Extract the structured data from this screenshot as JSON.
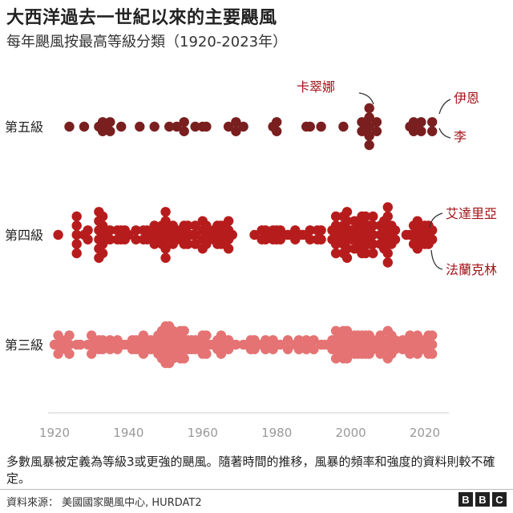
{
  "title": "大西洋過去一世紀以來的主要颶風",
  "subtitle": "每年颶風按最高等級分類（1920-2023年）",
  "footnote": "多數風暴被定義為等級3或更強的颶風。隨著時間的推移，風暴的頻率和強度的資料則較不確定。",
  "source": "資料來源：  美國國家颶風中心, HURDAT2",
  "logo": [
    "B",
    "B",
    "C"
  ],
  "colors": {
    "cat5": "#7a1f1f",
    "cat4": "#b71c1c",
    "cat3": "#e57373",
    "annotation": "#a3141a",
    "axis": "#999999"
  },
  "chart_data": {
    "type": "scatter",
    "description_style": "beeswarm",
    "x_axis": {
      "range": [
        1920,
        2023
      ],
      "ticks": [
        1920,
        1940,
        1960,
        1980,
        2000,
        2020
      ]
    },
    "rows": [
      {
        "label": "第五級",
        "key": "cat5"
      },
      {
        "label": "第四級",
        "key": "cat4"
      },
      {
        "label": "第三級",
        "key": "cat3"
      }
    ],
    "series": [
      {
        "name": "第五級",
        "key": "cat5",
        "years": [
          1924,
          1928,
          1932,
          1933,
          1933,
          1934,
          1935,
          1935,
          1938,
          1943,
          1947,
          1951,
          1953,
          1955,
          1955,
          1958,
          1960,
          1961,
          1967,
          1969,
          1969,
          1971,
          1979,
          1980,
          1980,
          1988,
          1989,
          1992,
          1998,
          2003,
          2003,
          2004,
          2004,
          2005,
          2005,
          2005,
          2005,
          2005,
          2007,
          2007,
          2016,
          2017,
          2017,
          2018,
          2019,
          2019,
          2022,
          2022
        ]
      },
      {
        "name": "第四級",
        "key": "cat4",
        "years": [
          1921,
          1926,
          1926,
          1926,
          1926,
          1926,
          1928,
          1929,
          1929,
          1932,
          1932,
          1932,
          1932,
          1932,
          1932,
          1933,
          1933,
          1933,
          1933,
          1933,
          1934,
          1934,
          1935,
          1935,
          1937,
          1937,
          1938,
          1938,
          1939,
          1939,
          1940,
          1942,
          1942,
          1944,
          1944,
          1945,
          1945,
          1946,
          1947,
          1947,
          1947,
          1948,
          1948,
          1949,
          1949,
          1949,
          1950,
          1950,
          1950,
          1950,
          1950,
          1950,
          1951,
          1951,
          1952,
          1952,
          1952,
          1953,
          1953,
          1954,
          1954,
          1955,
          1955,
          1955,
          1956,
          1956,
          1956,
          1957,
          1958,
          1958,
          1958,
          1960,
          1960,
          1960,
          1960,
          1961,
          1961,
          1961,
          1962,
          1963,
          1963,
          1964,
          1964,
          1964,
          1965,
          1965,
          1965,
          1966,
          1966,
          1966,
          1967,
          1967,
          1967,
          1967,
          1968,
          1974,
          1976,
          1976,
          1977,
          1977,
          1978,
          1979,
          1979,
          1980,
          1980,
          1981,
          1981,
          1982,
          1983,
          1984,
          1985,
          1985,
          1986,
          1987,
          1988,
          1989,
          1989,
          1991,
          1991,
          1992,
          1992,
          1995,
          1995,
          1996,
          1996,
          1996,
          1996,
          1996,
          1997,
          1997,
          1998,
          1998,
          1998,
          1998,
          1998,
          1999,
          1999,
          1999,
          1999,
          1999,
          1999,
          2000,
          2000,
          2001,
          2001,
          2001,
          2001,
          2002,
          2002,
          2002,
          2002,
          2003,
          2003,
          2003,
          2003,
          2003,
          2004,
          2004,
          2004,
          2004,
          2004,
          2005,
          2005,
          2005,
          2006,
          2006,
          2006,
          2006,
          2006,
          2008,
          2008,
          2008,
          2009,
          2009,
          2009,
          2009,
          2010,
          2010,
          2010,
          2010,
          2010,
          2010,
          2010,
          2011,
          2011,
          2011,
          2012,
          2012,
          2015,
          2016,
          2017,
          2017,
          2017,
          2018,
          2018,
          2018,
          2018,
          2019,
          2019,
          2019,
          2020,
          2020,
          2020,
          2021,
          2021,
          2021,
          2022,
          2022
        ]
      },
      {
        "name": "第三級",
        "key": "cat3",
        "years": [
          1920,
          1921,
          1921,
          1921,
          1922,
          1923,
          1923,
          1924,
          1924,
          1924,
          1926,
          1927,
          1929,
          1930,
          1930,
          1930,
          1931,
          1932,
          1932,
          1933,
          1933,
          1934,
          1935,
          1935,
          1936,
          1937,
          1937,
          1938,
          1939,
          1940,
          1941,
          1941,
          1942,
          1942,
          1943,
          1943,
          1944,
          1944,
          1944,
          1945,
          1945,
          1946,
          1946,
          1947,
          1947,
          1948,
          1948,
          1948,
          1949,
          1949,
          1949,
          1949,
          1950,
          1950,
          1950,
          1950,
          1950,
          1951,
          1951,
          1951,
          1951,
          1951,
          1952,
          1952,
          1952,
          1952,
          1953,
          1953,
          1953,
          1954,
          1954,
          1954,
          1954,
          1955,
          1955,
          1955,
          1955,
          1956,
          1956,
          1957,
          1957,
          1958,
          1958,
          1959,
          1960,
          1960,
          1960,
          1961,
          1961,
          1961,
          1962,
          1963,
          1964,
          1964,
          1965,
          1965,
          1965,
          1966,
          1966,
          1967,
          1967,
          1968,
          1969,
          1971,
          1972,
          1973,
          1973,
          1974,
          1974,
          1975,
          1976,
          1977,
          1977,
          1978,
          1979,
          1979,
          1980,
          1981,
          1983,
          1983,
          1985,
          1986,
          1986,
          1987,
          1988,
          1988,
          1989,
          1990,
          1990,
          1992,
          1993,
          1994,
          1995,
          1995,
          1996,
          1996,
          1996,
          1996,
          1997,
          1997,
          1997,
          1998,
          1998,
          1998,
          1998,
          1999,
          1999,
          1999,
          1999,
          2000,
          2000,
          2001,
          2001,
          2001,
          2002,
          2002,
          2002,
          2003,
          2003,
          2003,
          2004,
          2004,
          2004,
          2005,
          2005,
          2005,
          2006,
          2006,
          2007,
          2008,
          2008,
          2008,
          2009,
          2010,
          2010,
          2010,
          2010,
          2011,
          2011,
          2011,
          2012,
          2012,
          2013,
          2014,
          2014,
          2015,
          2015,
          2016,
          2016,
          2016,
          2017,
          2017,
          2018,
          2018,
          2018,
          2019,
          2019,
          2020,
          2020,
          2021,
          2021,
          2021,
          2022,
          2022,
          2022
        ]
      }
    ],
    "annotations": [
      {
        "text": "卡翠娜",
        "row": "cat5",
        "year": 2005
      },
      {
        "text": "伊恩",
        "row": "cat5",
        "year": 2022
      },
      {
        "text": "李",
        "row": "cat5",
        "year": 2023
      },
      {
        "text": "艾達里亞",
        "row": "cat4",
        "year": 2021
      },
      {
        "text": "法蘭克林",
        "row": "cat4",
        "year": 2023
      }
    ]
  }
}
